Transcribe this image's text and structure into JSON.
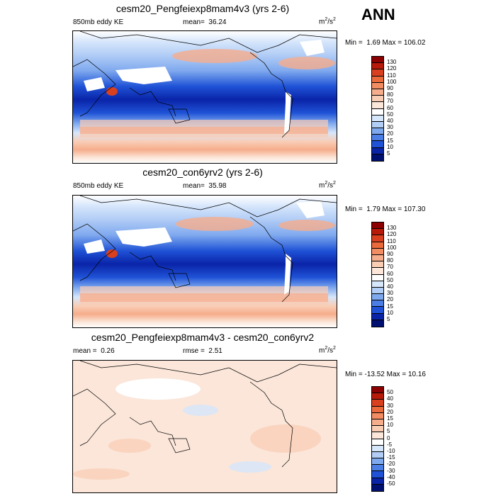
{
  "season": "ANN",
  "panels": [
    {
      "title": "cesm20_Pengfeiexp8mam4v3 (yrs 2-6)",
      "left_label": "850mb eddy KE",
      "stat_label": "mean=",
      "stat_value": "36.24",
      "units": "m",
      "units_sup1": "2",
      "units_mid": "/s",
      "units_sup2": "2",
      "min_label": "Min =",
      "min_value": "1.69",
      "max_label": "Max =",
      "max_value": "106.02",
      "colorbar_labels": [
        "130",
        "120",
        "110",
        "100",
        "90",
        "80",
        "70",
        "60",
        "50",
        "40",
        "30",
        "20",
        "15",
        "10",
        "5"
      ],
      "colors": [
        "#8b0000",
        "#b81a0a",
        "#d8401f",
        "#ea6a3c",
        "#f28c62",
        "#f6ad8c",
        "#f9ccb4",
        "#fbe6d9",
        "#ffffff",
        "#d6e6fb",
        "#b2cdf6",
        "#7fa9ee",
        "#4b7fe6",
        "#1f52d6",
        "#0a24a8",
        "#001070"
      ],
      "features": [
        "land-masked white patches over Tibet, Sahara, Andes, Greenland",
        "high eddy KE storm tracks in N Pacific and N Atlantic",
        "high eddy KE Southern Ocean band"
      ]
    },
    {
      "title": "cesm20_con6yrv2 (yrs 2-6)",
      "left_label": "850mb eddy KE",
      "stat_label": "mean=",
      "stat_value": "35.98",
      "units": "m",
      "units_sup1": "2",
      "units_mid": "/s",
      "units_sup2": "2",
      "min_label": "Min =",
      "min_value": "1.79",
      "max_label": "Max =",
      "max_value": "107.30",
      "colorbar_labels": [
        "130",
        "120",
        "110",
        "100",
        "90",
        "80",
        "70",
        "60",
        "50",
        "40",
        "30",
        "20",
        "15",
        "10",
        "5"
      ],
      "colors": [
        "#8b0000",
        "#b81a0a",
        "#d8401f",
        "#ea6a3c",
        "#f28c62",
        "#f6ad8c",
        "#f9ccb4",
        "#fbe6d9",
        "#ffffff",
        "#d6e6fb",
        "#b2cdf6",
        "#7fa9ee",
        "#4b7fe6",
        "#1f52d6",
        "#0a24a8",
        "#001070"
      ]
    },
    {
      "title": "cesm20_Pengfeiexp8mam4v3 - cesm20_con6yrv2",
      "left_label": "mean =",
      "left_value": "0.26",
      "stat_label": "rmse =",
      "stat_value": "2.51",
      "units": "m",
      "units_sup1": "2",
      "units_mid": "/s",
      "units_sup2": "2",
      "min_label": "Min =",
      "min_value": "-13.52",
      "max_label": "Max =",
      "max_value": "10.16",
      "colorbar_labels": [
        "50",
        "40",
        "30",
        "20",
        "15",
        "10",
        "5",
        "0",
        "-5",
        "-10",
        "-15",
        "-20",
        "-30",
        "-40",
        "-50"
      ],
      "colors": [
        "#8b0000",
        "#b81a0a",
        "#d8401f",
        "#ea6a3c",
        "#f28c62",
        "#f6ad8c",
        "#f9ccb4",
        "#fbe6d9",
        "#ffffff",
        "#d6e6fb",
        "#b2cdf6",
        "#7fa9ee",
        "#4b7fe6",
        "#1f52d6",
        "#0a24a8",
        "#001070"
      ]
    }
  ]
}
